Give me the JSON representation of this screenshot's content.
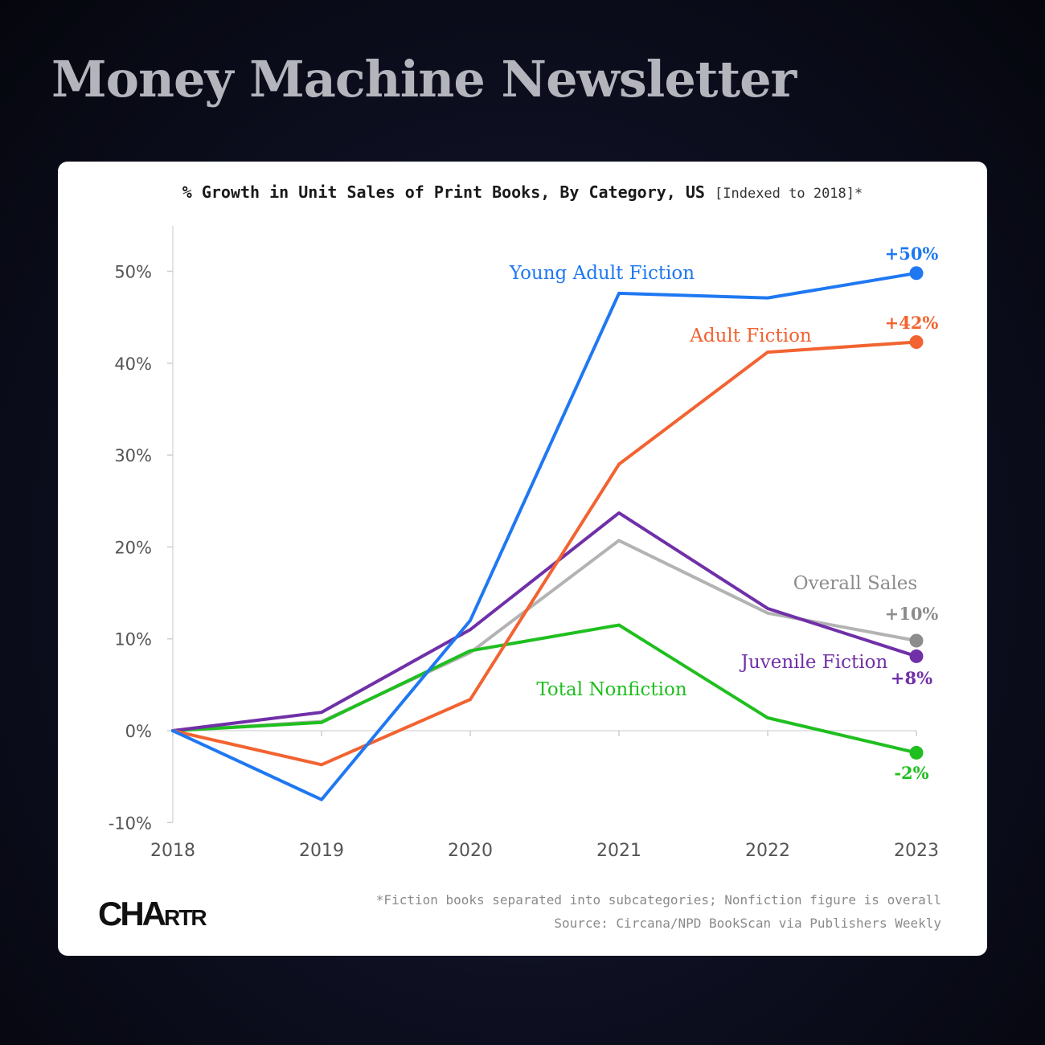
{
  "header": {
    "brand": "Money Machine Newsletter"
  },
  "chart_data": {
    "type": "line",
    "title": "% Growth in Unit Sales of Print Books, By Category, US",
    "subtitle": "[Indexed to 2018]*",
    "x": [
      "2018",
      "2019",
      "2020",
      "2021",
      "2022",
      "2023"
    ],
    "y_ticks": [
      "50%",
      "40%",
      "30%",
      "20%",
      "10%",
      "0%",
      "-10%"
    ],
    "ylim": [
      -10,
      55
    ],
    "grid": false,
    "series": [
      {
        "name": "Overall Sales",
        "color": "#b3b3b3",
        "dot_color": "#8c8c8c",
        "values": [
          0,
          1,
          8.5,
          20.7,
          12.8,
          9.8
        ],
        "end_label": "+10%"
      },
      {
        "name": "Total Nonfiction",
        "color": "#1fbf1f",
        "dot_color": "#1fbf1f",
        "values": [
          0,
          0.9,
          8.7,
          11.5,
          1.4,
          -2.4
        ],
        "end_label": "-2%"
      },
      {
        "name": "Juvenile Fiction",
        "color": "#7030a8",
        "dot_color": "#7030a8",
        "values": [
          0,
          2,
          11,
          23.7,
          13.3,
          8.1
        ],
        "end_label": "+8%"
      },
      {
        "name": "Adult Fiction",
        "color": "#f26331",
        "dot_color": "#f26331",
        "values": [
          0,
          -3.7,
          3.4,
          29,
          41.2,
          42.3
        ],
        "end_label": "+42%"
      },
      {
        "name": "Young Adult Fiction",
        "color": "#1f78f2",
        "dot_color": "#1f78f2",
        "values": [
          0,
          -7.5,
          12,
          47.6,
          47.1,
          49.8
        ],
        "end_label": "+50%"
      }
    ],
    "footnote": "*Fiction books separated into subcategories; Nonfiction figure is overall",
    "source": "Source: Circana/NPD BookScan via Publishers Weekly"
  },
  "footer": {
    "logo_main": "CHA",
    "logo_small": "RTR"
  }
}
